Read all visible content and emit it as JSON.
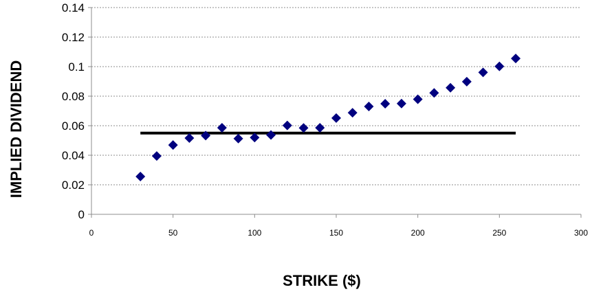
{
  "chart_data": {
    "type": "scatter",
    "xlabel": "STRIKE ($)",
    "ylabel": "IMPLIED  DIVIDEND",
    "xlim": [
      0,
      300
    ],
    "ylim": [
      0,
      0.14
    ],
    "x_ticks": [
      "0",
      "50",
      "100",
      "150",
      "200",
      "250",
      "300"
    ],
    "y_ticks": [
      "0",
      "0.02",
      "0.04",
      "0.06",
      "0.08",
      "0.1",
      "0.12",
      "0.14"
    ],
    "grid": "horizontal dashed",
    "legend": "none",
    "series": [
      {
        "marker": "diamond",
        "color": "#00007f",
        "points": [
          [
            30,
            0.0256
          ],
          [
            40,
            0.0395
          ],
          [
            50,
            0.0469
          ],
          [
            60,
            0.0516
          ],
          [
            70,
            0.0533
          ],
          [
            80,
            0.0586
          ],
          [
            90,
            0.0513
          ],
          [
            100,
            0.052
          ],
          [
            110,
            0.0537
          ],
          [
            120,
            0.0602
          ],
          [
            130,
            0.0585
          ],
          [
            140,
            0.0586
          ],
          [
            150,
            0.0652
          ],
          [
            160,
            0.0688
          ],
          [
            170,
            0.073
          ],
          [
            180,
            0.0749
          ],
          [
            190,
            0.075
          ],
          [
            200,
            0.0779
          ],
          [
            210,
            0.0822
          ],
          [
            220,
            0.0857
          ],
          [
            230,
            0.0898
          ],
          [
            240,
            0.0961
          ],
          [
            250,
            0.1002
          ],
          [
            260,
            0.1055
          ]
        ]
      }
    ],
    "reference_line": {
      "x": [
        30,
        260
      ],
      "y": 0.055,
      "color": "#000000"
    }
  }
}
